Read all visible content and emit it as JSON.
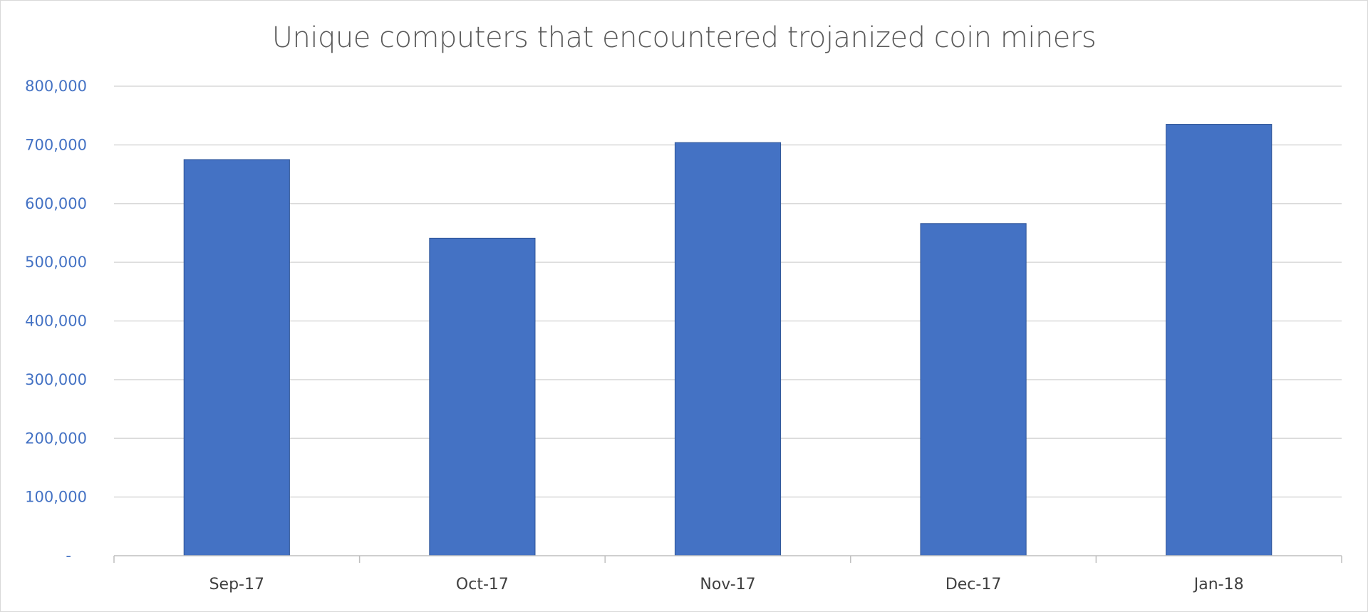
{
  "chart_data": {
    "type": "bar",
    "title": "Unique computers that encountered trojanized coin miners",
    "xlabel": "",
    "ylabel": "",
    "categories": [
      "Sep-17",
      "Oct-17",
      "Nov-17",
      "Dec-17",
      "Jan-18"
    ],
    "values": [
      675000,
      541000,
      704000,
      566000,
      735000
    ],
    "ylim": [
      0,
      800000
    ],
    "yticks": [
      {
        "value": 0,
        "label": "-"
      },
      {
        "value": 100000,
        "label": "100,000"
      },
      {
        "value": 200000,
        "label": "200,000"
      },
      {
        "value": 300000,
        "label": "300,000"
      },
      {
        "value": 400000,
        "label": "400,000"
      },
      {
        "value": 500000,
        "label": "500,000"
      },
      {
        "value": 600000,
        "label": "600,000"
      },
      {
        "value": 700000,
        "label": "700,000"
      },
      {
        "value": 800000,
        "label": "800,000"
      }
    ],
    "grid": true,
    "legend": "none",
    "colors": {
      "bar": "#4472c4",
      "bar_border": "#2f5597",
      "tick_y": "#4472c4",
      "tick_x": "#404040",
      "title": "#595959",
      "grid": "#d9d9d9"
    }
  }
}
